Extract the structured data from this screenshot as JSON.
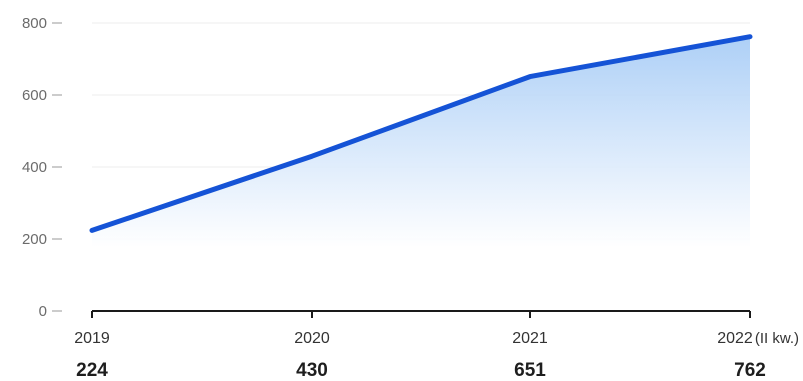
{
  "chart_data": {
    "type": "area",
    "categories": [
      "2019",
      "2020",
      "2021",
      "2022"
    ],
    "category_suffixes": [
      "",
      "",
      "",
      "(II kw.)"
    ],
    "values": [
      224,
      430,
      651,
      762
    ],
    "value_labels": [
      "224",
      "430",
      "651",
      "762"
    ],
    "yticks": [
      "0",
      "200",
      "400",
      "600",
      "800"
    ],
    "ylim": [
      0,
      800
    ],
    "grid": true,
    "colors": {
      "line": "#1553d6",
      "fill_top": "#a9cdf6",
      "fill_bottom": "#ffffff",
      "grid": "#ececec",
      "axis": "#1a1a1a"
    }
  }
}
